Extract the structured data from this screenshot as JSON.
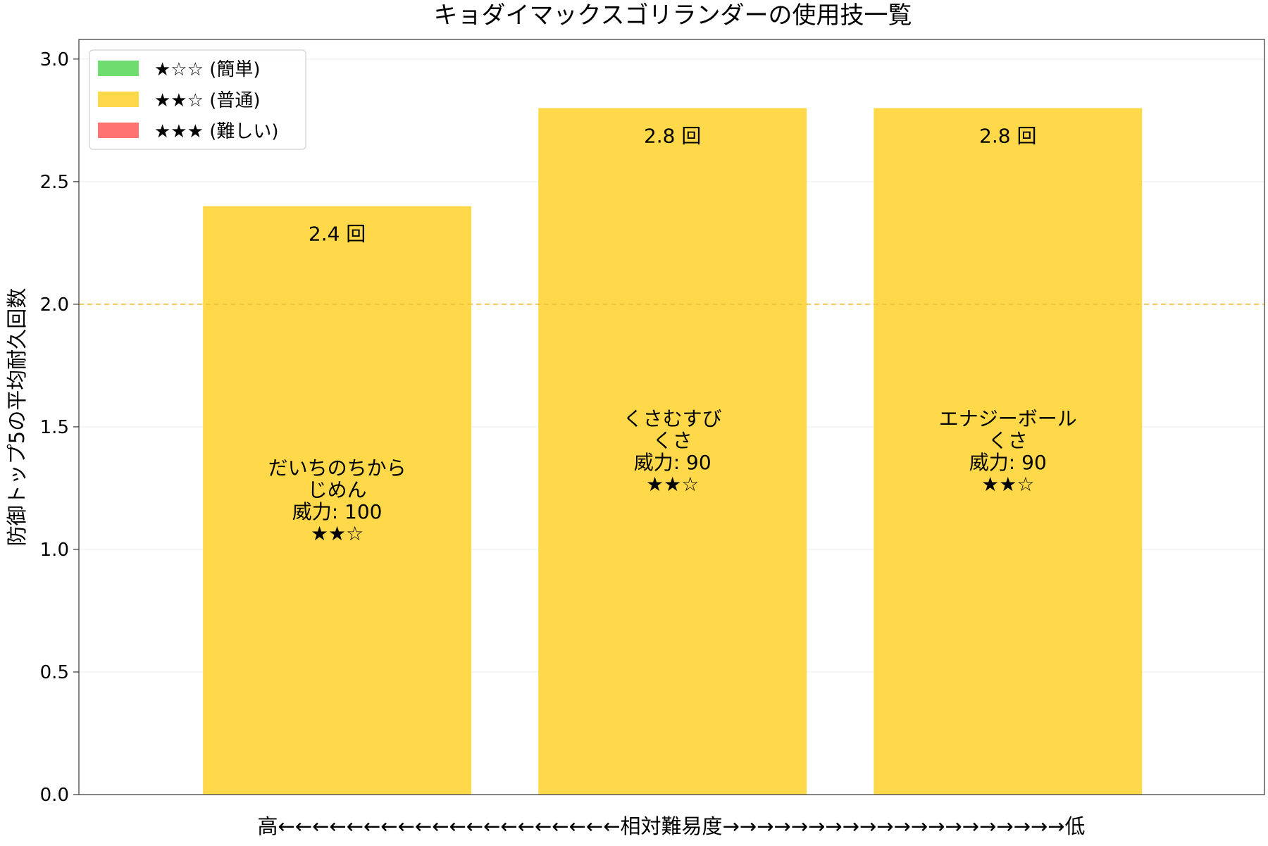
{
  "chart_data": {
    "type": "bar",
    "title": "キョダイマックスゴリランダーの使用技一覧",
    "xlabel": "高←←←←←←←←←←←←←←←←←←←←相対難易度→→→→→→→→→→→→→→→→→→→→低",
    "ylabel": "防御トップ5の平均耐久回数",
    "ylim": [
      0,
      3.08
    ],
    "yticks": [
      "0.0",
      "0.5",
      "1.0",
      "1.5",
      "2.0",
      "2.5",
      "3.0"
    ],
    "grid": "y",
    "reference_line": {
      "y": 2.0,
      "color": "#f0c040",
      "style": "dashed"
    },
    "legend": {
      "position": "top-left",
      "entries": [
        {
          "label": "★☆☆ (簡単)",
          "color": "#6fdc6f"
        },
        {
          "label": "★★☆ (普通)",
          "color": "#ffd94a"
        },
        {
          "label": "★★★ (難しい)",
          "color": "#ff7373"
        }
      ]
    },
    "bars": [
      {
        "move": "だいちのちから",
        "type": "じめん",
        "power": "威力: 100",
        "stars": "★★☆",
        "value": 2.4,
        "value_label": "2.4 回",
        "color": "#ffd94a"
      },
      {
        "move": "くさむすび",
        "type": "くさ",
        "power": "威力: 90",
        "stars": "★★☆",
        "value": 2.8,
        "value_label": "2.8 回",
        "color": "#ffd94a"
      },
      {
        "move": "エナジーボール",
        "type": "くさ",
        "power": "威力: 90",
        "stars": "★★☆",
        "value": 2.8,
        "value_label": "2.8 回",
        "color": "#ffd94a"
      }
    ]
  }
}
